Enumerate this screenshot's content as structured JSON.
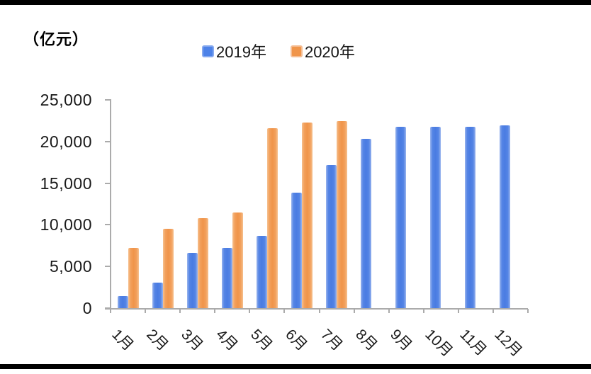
{
  "unit_label": "（亿元）",
  "legend": [
    {
      "label": "2019年",
      "color": "#4d82e8",
      "border": "#86a9ef"
    },
    {
      "label": "2020年",
      "color": "#f0954a",
      "border": "#f5bd92"
    }
  ],
  "chart_data": {
    "type": "bar",
    "title": "（亿元）",
    "xlabel": "",
    "ylabel": "亿元",
    "categories": [
      "1月",
      "2月",
      "3月",
      "4月",
      "5月",
      "6月",
      "7月",
      "8月",
      "9月",
      "10月",
      "11月",
      "12月"
    ],
    "series": [
      {
        "name": "2019年",
        "color": "#4d82e8",
        "values": [
          1450,
          3050,
          6600,
          7250,
          8700,
          13900,
          17200,
          20300,
          21750,
          21750,
          21750,
          21900
        ]
      },
      {
        "name": "2020年",
        "color": "#f0954a",
        "values": [
          7200,
          9550,
          10800,
          11450,
          21600,
          22300,
          22450,
          null,
          null,
          null,
          null,
          null
        ]
      }
    ],
    "ylim": [
      0,
      25000
    ],
    "yticks": [
      0,
      5000,
      10000,
      15000,
      20000,
      25000
    ],
    "ytick_labels": [
      "0",
      "5,000",
      "10,000",
      "15,000",
      "20,000",
      "25,000"
    ],
    "grid": false,
    "legend_position": "top-center",
    "x_label_rotation_deg": 45
  }
}
